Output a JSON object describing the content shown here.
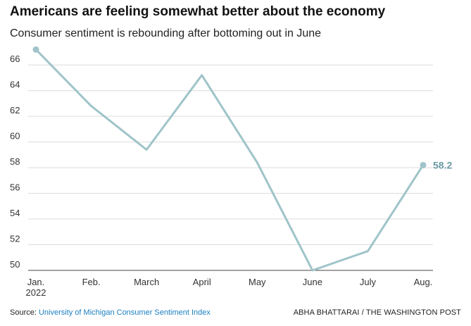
{
  "chart_data": {
    "type": "line",
    "title": "Americans are feeling somewhat better about the economy",
    "subtitle": "Consumer sentiment is rebounding after bottoming out in June",
    "categories": [
      "Jan.",
      "Feb.",
      "March",
      "April",
      "May",
      "June",
      "July",
      "Aug."
    ],
    "x_sublabel": "2022",
    "series": [
      {
        "values": [
          67.2,
          62.8,
          59.4,
          65.2,
          58.4,
          50.0,
          51.5,
          58.2
        ]
      }
    ],
    "ylim": [
      50,
      67
    ],
    "yticks": [
      50,
      52,
      54,
      56,
      58,
      60,
      62,
      64,
      66
    ],
    "end_label": "58.2",
    "grid": true,
    "line_color": "#9fc4c9",
    "end_label_color": "#6b9aa3"
  },
  "footer": {
    "source_prefix": "Source: ",
    "source_link": "University of Michigan Consumer Sentiment Index",
    "credit": "ABHA BHATTARAI / THE WASHINGTON POST"
  }
}
